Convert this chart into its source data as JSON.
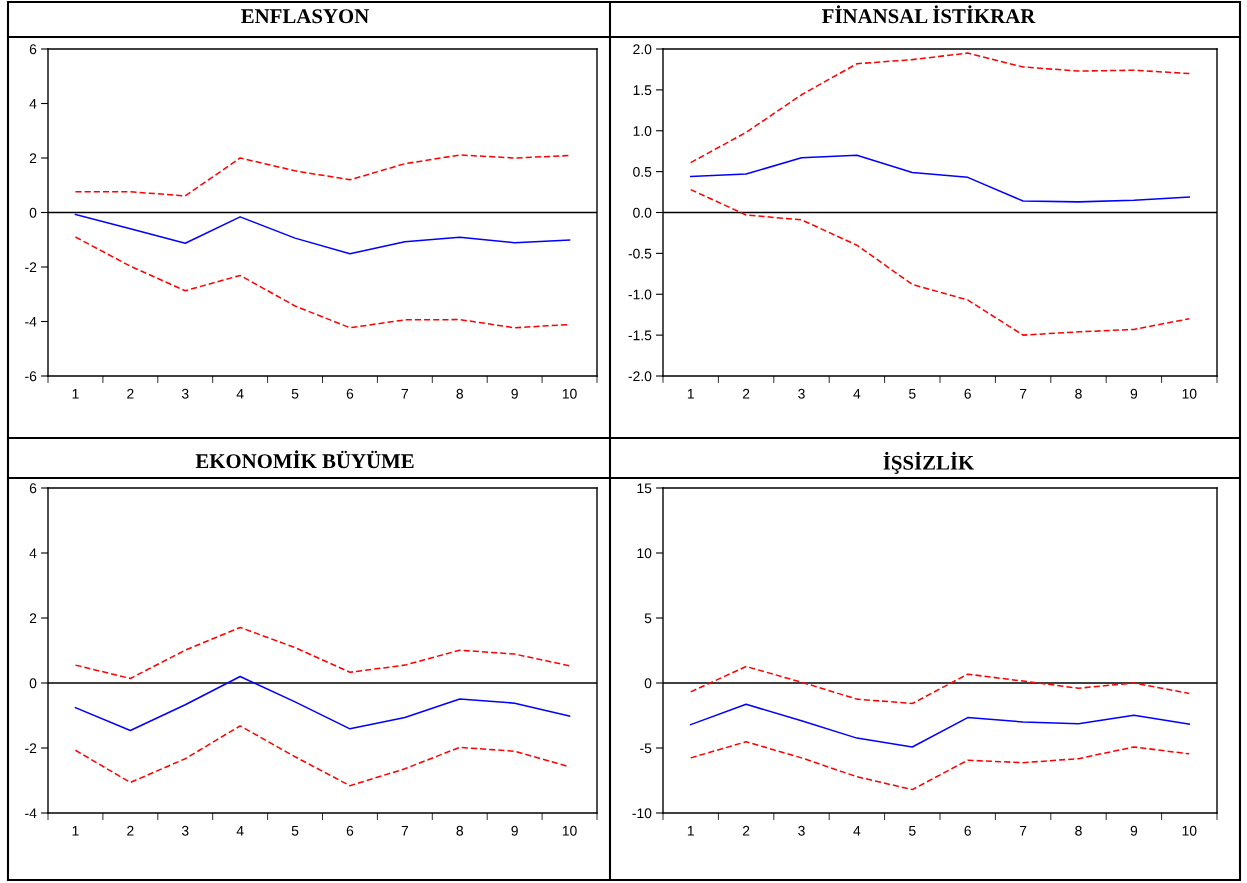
{
  "chart_data": [
    {
      "type": "line",
      "title": "ENFLASYON",
      "categories": [
        "1",
        "2",
        "3",
        "4",
        "5",
        "6",
        "7",
        "8",
        "9",
        "10"
      ],
      "ylim": [
        -6,
        6
      ],
      "yticks": [
        -6,
        -4,
        -2,
        0,
        2,
        4,
        6
      ],
      "grid": false,
      "marker": "none",
      "ref_lines": [
        {
          "axis": "y",
          "value": 0,
          "color": "#000000"
        }
      ],
      "series": [
        {
          "color": "#0000ff",
          "line_style": "solid",
          "values": [
            -0.07,
            -0.6,
            -1.13,
            -0.16,
            -0.94,
            -1.51,
            -1.07,
            -0.91,
            -1.11,
            -1.01
          ]
        },
        {
          "color": "#ff0000",
          "line_style": "dashed",
          "values": [
            0.76,
            0.76,
            0.61,
            2.0,
            1.53,
            1.2,
            1.79,
            2.11,
            2.0,
            2.09
          ]
        },
        {
          "color": "#ff0000",
          "line_style": "dashed",
          "values": [
            -0.9,
            -1.97,
            -2.87,
            -2.31,
            -3.43,
            -4.23,
            -3.94,
            -3.93,
            -4.23,
            -4.11
          ]
        }
      ]
    },
    {
      "type": "line",
      "title": "FİNANSAL İSTİKRAR",
      "categories": [
        "1",
        "2",
        "3",
        "4",
        "5",
        "6",
        "7",
        "8",
        "9",
        "10"
      ],
      "ylim": [
        -2.0,
        2.0
      ],
      "yticks": [
        {
          "value": -2.0,
          "label": "-2.0"
        },
        {
          "value": -1.5,
          "label": "-1.5"
        },
        {
          "value": -1.0,
          "label": "-1.0"
        },
        {
          "value": -0.5,
          "label": "-0.5"
        },
        {
          "value": 0.0,
          "label": "0.0"
        },
        {
          "value": 0.5,
          "label": "0.5"
        },
        {
          "value": 1.0,
          "label": "1.0"
        },
        {
          "value": 1.5,
          "label": "1.5"
        },
        {
          "value": 2.0,
          "label": "2.0"
        }
      ],
      "grid": false,
      "marker": "none",
      "ref_lines": [
        {
          "axis": "y",
          "value": 0,
          "color": "#000000"
        }
      ],
      "series": [
        {
          "color": "#0000ff",
          "line_style": "solid",
          "values": [
            0.44,
            0.47,
            0.67,
            0.7,
            0.49,
            0.43,
            0.14,
            0.13,
            0.15,
            0.19
          ]
        },
        {
          "color": "#ff0000",
          "line_style": "dashed",
          "values": [
            0.61,
            0.98,
            1.44,
            1.82,
            1.87,
            1.95,
            1.78,
            1.73,
            1.74,
            1.7
          ]
        },
        {
          "color": "#ff0000",
          "line_style": "dashed",
          "values": [
            0.28,
            -0.03,
            -0.09,
            -0.4,
            -0.88,
            -1.07,
            -1.5,
            -1.46,
            -1.43,
            -1.3
          ]
        }
      ]
    },
    {
      "type": "line",
      "title": "EKONOMİK BÜYÜME",
      "categories": [
        "1",
        "2",
        "3",
        "4",
        "5",
        "6",
        "7",
        "8",
        "9",
        "10"
      ],
      "ylim": [
        -4,
        6
      ],
      "yticks": [
        -4,
        -2,
        0,
        2,
        4,
        6
      ],
      "grid": false,
      "marker": "none",
      "ref_lines": [
        {
          "axis": "y",
          "value": 0,
          "color": "#000000"
        }
      ],
      "series": [
        {
          "color": "#0000ff",
          "line_style": "solid",
          "values": [
            -0.76,
            -1.46,
            -0.67,
            0.2,
            -0.58,
            -1.41,
            -1.06,
            -0.49,
            -0.62,
            -1.02
          ]
        },
        {
          "color": "#ff0000",
          "line_style": "dashed",
          "values": [
            0.55,
            0.14,
            1.01,
            1.71,
            1.09,
            0.33,
            0.55,
            1.01,
            0.89,
            0.53
          ]
        },
        {
          "color": "#ff0000",
          "line_style": "dashed",
          "values": [
            -2.07,
            -3.06,
            -2.33,
            -1.32,
            -2.27,
            -3.16,
            -2.64,
            -1.98,
            -2.1,
            -2.58
          ]
        }
      ]
    },
    {
      "type": "line",
      "title": "İŞSİZLİK",
      "categories": [
        "1",
        "2",
        "3",
        "4",
        "5",
        "6",
        "7",
        "8",
        "9",
        "10"
      ],
      "ylim": [
        -10,
        15
      ],
      "yticks": [
        -10,
        -5,
        0,
        5,
        10,
        15
      ],
      "grid": false,
      "marker": "none",
      "ref_lines": [
        {
          "axis": "y",
          "value": 0,
          "color": "#000000"
        }
      ],
      "series": [
        {
          "color": "#0000ff",
          "line_style": "solid",
          "values": [
            -3.2,
            -1.64,
            -2.9,
            -4.24,
            -4.92,
            -2.66,
            -3.0,
            -3.13,
            -2.48,
            -3.16
          ]
        },
        {
          "color": "#ff0000",
          "line_style": "dashed",
          "values": [
            -0.68,
            1.27,
            0.06,
            -1.24,
            -1.58,
            0.68,
            0.15,
            -0.4,
            0.0,
            -0.8
          ]
        },
        {
          "color": "#ff0000",
          "line_style": "dashed",
          "values": [
            -5.76,
            -4.52,
            -5.76,
            -7.21,
            -8.2,
            -5.94,
            -6.13,
            -5.82,
            -4.92,
            -5.45
          ]
        }
      ]
    }
  ]
}
